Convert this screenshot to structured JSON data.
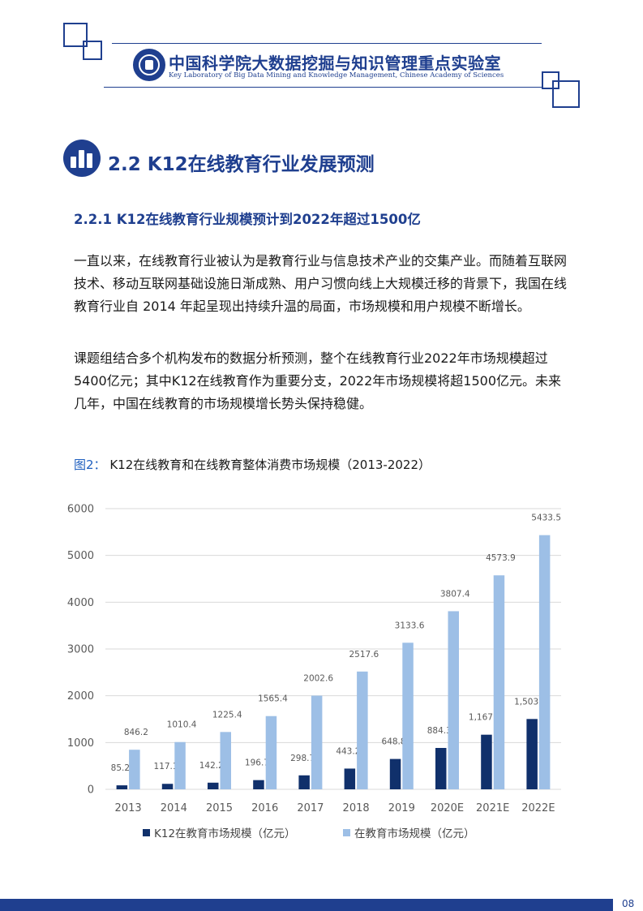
{
  "header": {
    "lab_name_cn": "中国科学院大数据挖掘与知识管理重点实验室",
    "lab_name_en": "Key Laboratory of Big Data Mining and Knowledge Management, Chinese Academy of Sciences"
  },
  "section": {
    "title": "2.2 K12在线教育行业发展预测",
    "subtitle": "2.2.1 K12在线教育行业规模预计到2022年超过1500亿"
  },
  "paragraphs": [
    "一直以来，在线教育行业被认为是教育行业与信息技术产业的交集产业。而随着互联网技术、移动互联网基础设施日渐成熟、用户习惯向线上大规模迁移的背景下，我国在线教育行业自 2014 年起呈现出持续升温的局面，市场规模和用户规模不断增长。",
    "课题组结合多个机构发布的数据分析预测，整个在线教育行业2022年市场规模超过5400亿元；其中K12在线教育作为重要分支，2022年市场规模将超1500亿元。未来几年，中国在线教育的市场规模增长势头保持稳健。"
  ],
  "figure": {
    "label": "图2：",
    "caption": "K12在线教育和在线教育整体消费市场规模（2013-2022）"
  },
  "chart_data": {
    "type": "bar",
    "title": "",
    "xlabel": "",
    "ylabel": "",
    "ylim": [
      0,
      6000
    ],
    "yticks": [
      "0",
      "1000",
      "2000",
      "3000",
      "4000",
      "5000",
      "6000"
    ],
    "grid": true,
    "legend_position": "bottom",
    "categories": [
      "2013",
      "2014",
      "2015",
      "2016",
      "2017",
      "2018",
      "2019",
      "2020E",
      "2021E",
      "2022E"
    ],
    "series": [
      {
        "name": "K12在教育市场规模（亿元）",
        "color": "#10306b",
        "values": [
          85.2,
          117.1,
          142.2,
          196.7,
          298.7,
          443.2,
          648.8,
          884.3,
          1167.4,
          1503.4
        ],
        "labels": [
          "85.2",
          "117.1",
          "142.2",
          "196.7",
          "298.7",
          "443.2",
          "648.8",
          "884.3",
          "1,167.4",
          "1,503.4"
        ]
      },
      {
        "name": "在教育市场规模（亿元）",
        "color": "#9dbfe6",
        "values": [
          846.2,
          1010.4,
          1225.4,
          1565.4,
          2002.6,
          2517.6,
          3133.6,
          3807.4,
          4573.9,
          5433.5
        ],
        "labels": [
          "846.2",
          "1010.4",
          "1225.4",
          "1565.4",
          "2002.6",
          "2517.6",
          "3133.6",
          "3807.4",
          "4573.9",
          "5433.5"
        ]
      }
    ]
  },
  "footer": {
    "page_number": "08",
    "bar_color": "#1f3f8f"
  }
}
